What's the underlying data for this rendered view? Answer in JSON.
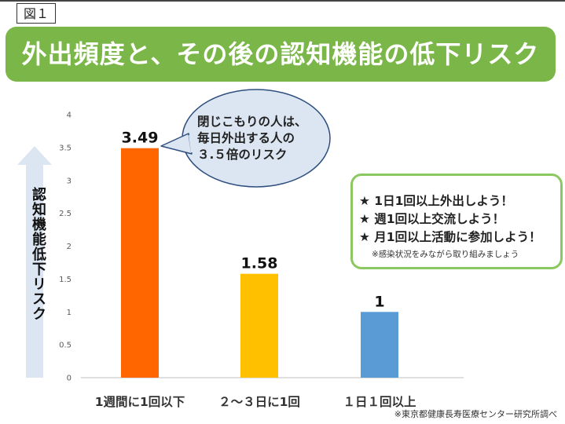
{
  "figure_label": "図１",
  "title": "外出頻度と、その後の認知機能の低下リスク",
  "y_axis_label": "認知機能低下リスク",
  "callout": {
    "lines": [
      "閉じこもりの人は、",
      "毎日外出する人の",
      "３.５倍のリスク"
    ]
  },
  "tips": {
    "items": [
      "★ 1日1回以上外出しよう！",
      "★ 週1回以上交流しよう！",
      "★ 月1回以上活動に参加しよう！"
    ],
    "note": "※感染状況をみながら取り組みましょう"
  },
  "source": "※東京都健康長寿医療センター研究所調べ",
  "colors": {
    "banner": "#7ab648",
    "tips_border": "#8cc860",
    "arrow": "#dce6f2",
    "bubble_fill": "#dce6f2",
    "bubble_stroke": "#2f4f7f"
  },
  "chart_data": {
    "type": "bar",
    "categories": [
      "1週間に1回以下",
      "２～３日に1回",
      "１日１回以上"
    ],
    "values": [
      3.49,
      1.58,
      1
    ],
    "value_labels": [
      "3.49",
      "1.58",
      "1"
    ],
    "colors": [
      "#ff6600",
      "#ffc000",
      "#5b9bd5"
    ],
    "ylim": [
      0,
      4
    ],
    "yticks": [
      "0",
      "0.5",
      "1",
      "1.5",
      "2",
      "2.5",
      "3",
      "3.5",
      "4"
    ],
    "grid": false
  }
}
